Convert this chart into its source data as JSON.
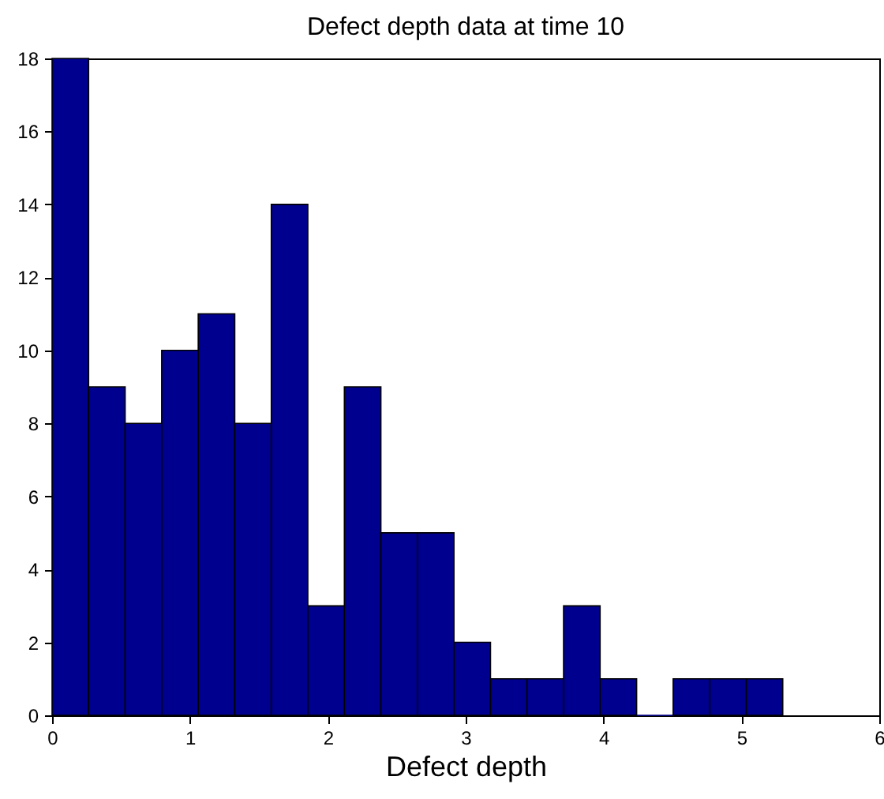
{
  "chart_data": {
    "type": "histogram",
    "title": "Defect depth data at time 10",
    "xlabel": "Defect depth",
    "bins": [
      0,
      0.265,
      0.53,
      0.795,
      1.06,
      1.325,
      1.59,
      1.855,
      2.12,
      2.385,
      2.65,
      2.915,
      3.18,
      3.445,
      3.71,
      3.975,
      4.24,
      4.505,
      4.77,
      5.035,
      5.3
    ],
    "values": [
      18,
      9,
      8,
      10,
      11,
      8,
      14,
      3,
      9,
      5,
      5,
      2,
      1,
      1,
      3,
      1,
      0,
      1,
      1,
      1
    ],
    "color": "#00008f",
    "xlim": [
      0,
      6
    ],
    "xticks": [
      0,
      1,
      2,
      3,
      4,
      5,
      6
    ],
    "ylim": [
      0,
      18
    ],
    "yticks": [
      0,
      2,
      4,
      6,
      8,
      10,
      12,
      14,
      16,
      18
    ]
  }
}
